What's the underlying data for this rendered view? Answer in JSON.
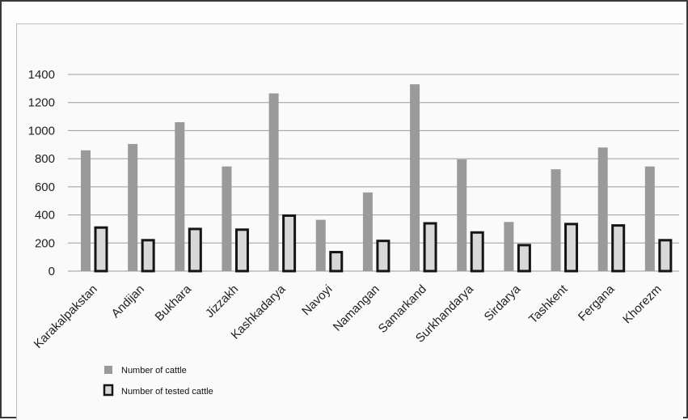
{
  "chart_data": {
    "type": "bar",
    "categories": [
      "Karakalpakstan",
      "Andijan",
      "Bukhara",
      "Jizzakh",
      "Kashkadarya",
      "Navoyi",
      "Namangan",
      "Samarkand",
      "Surkhandarya",
      "Sirdarya",
      "Tashkent",
      "Fergana",
      "Khorezm"
    ],
    "series": [
      {
        "name": "Number of cattle",
        "values": [
          860,
          905,
          1060,
          745,
          1265,
          365,
          560,
          1330,
          795,
          350,
          725,
          880,
          745
        ]
      },
      {
        "name": "Number of tested cattle",
        "values": [
          310,
          220,
          300,
          295,
          395,
          135,
          215,
          340,
          275,
          185,
          335,
          325,
          220
        ]
      }
    ],
    "ylim": [
      0,
      1400
    ],
    "yticks": [
      0,
      200,
      400,
      600,
      800,
      1000,
      1200,
      1400
    ],
    "grid": true,
    "legend_position": "bottom-left",
    "colors": {
      "cattle": "#9a9a9a",
      "tested_fill": "#d8d8d8",
      "tested_edge": "#151515",
      "grid": "#9a9a9a"
    }
  }
}
